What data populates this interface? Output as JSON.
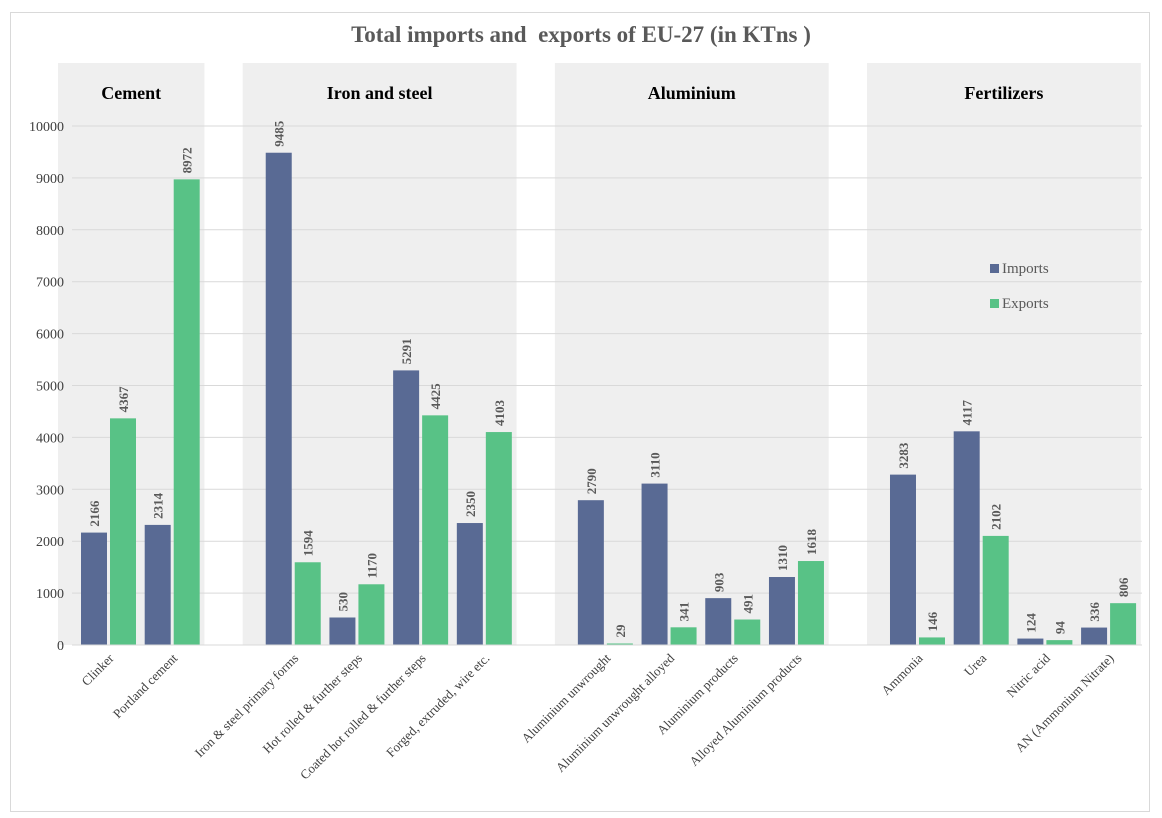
{
  "chart_data": {
    "type": "bar",
    "title": "Total imports and  exports of EU-27 (in KTns )",
    "xlabel": "",
    "ylabel": "",
    "ylim": [
      0,
      10000
    ],
    "yticks": [
      0,
      1000,
      2000,
      3000,
      4000,
      5000,
      6000,
      7000,
      8000,
      9000,
      10000
    ],
    "grid": true,
    "legend_position": "right",
    "groups": [
      {
        "label": "Cement",
        "categories": [
          "Clinker",
          "Portland cement"
        ]
      },
      {
        "label": "Iron and steel",
        "categories": [
          "Iron & steel primary forms",
          "Hot rolled & further steps",
          "Coated hot rolled & further steps",
          "Forged, extruded, wire etc."
        ]
      },
      {
        "label": "Aluminium",
        "categories": [
          "Aluminium unwrought",
          "Aluminium unwrought alloyed",
          "Aluminium products",
          "Alloyed Aluminium products"
        ]
      },
      {
        "label": "Fertilizers",
        "categories": [
          "Ammonia",
          "Urea",
          "Nitric acid",
          "AN (Ammonium Nitrate)"
        ]
      }
    ],
    "categories": [
      "Clinker",
      "Portland cement",
      "Iron & steel primary forms",
      "Hot rolled & further steps",
      "Coated hot rolled & further steps",
      "Forged, extruded, wire etc.",
      "Aluminium unwrought",
      "Aluminium unwrought alloyed",
      "Aluminium products",
      "Alloyed Aluminium products",
      "Ammonia",
      "Urea",
      "Nitric acid",
      "AN (Ammonium Nitrate)"
    ],
    "series": [
      {
        "name": "Imports",
        "color": "#596a94",
        "values": [
          2166,
          2314,
          9485,
          530,
          5291,
          2350,
          2790,
          3110,
          903,
          1310,
          3283,
          4117,
          124,
          336
        ]
      },
      {
        "name": "Exports",
        "color": "#58c286",
        "values": [
          4367,
          8972,
          1594,
          1170,
          4425,
          4103,
          29,
          341,
          491,
          1618,
          146,
          2102,
          94,
          806
        ]
      }
    ]
  },
  "colors": {
    "panel_background": "#efefef",
    "gridline": "#d9d9d9"
  }
}
